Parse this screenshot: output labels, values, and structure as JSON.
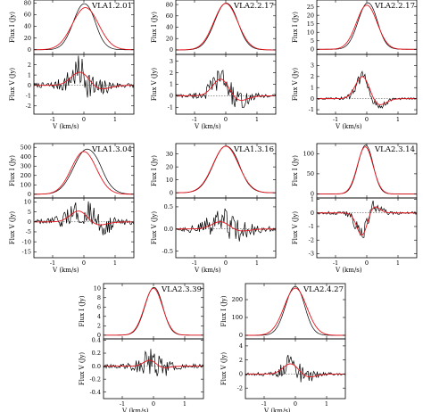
{
  "chart_data": [
    {
      "type": "line",
      "panel_title": "VLA1.2.01",
      "x_ticks": [
        -1,
        0,
        1
      ],
      "xlabel": "V (km/s)",
      "xlim": [
        -1.6,
        1.6
      ],
      "stokes_i": {
        "ylabel": "Flux I (Jy)",
        "ylim": [
          -8,
          85
        ],
        "y_ticks": [
          0,
          20,
          40,
          60,
          80
        ],
        "peak": 78,
        "center": 0.0,
        "width": 0.34,
        "model_peak": 72,
        "model_center": 0.05,
        "model_width": 0.42
      },
      "stokes_v": {
        "ylabel": "Flux V (Jy)",
        "ylim": [
          -2.8,
          3.0
        ],
        "y_ticks": [
          -2,
          -1,
          0,
          1,
          2
        ],
        "model_amp": 1.4,
        "noise": 0.9
      }
    },
    {
      "type": "line",
      "panel_title": "VLA2.2.17",
      "x_ticks": [
        -1,
        0,
        1
      ],
      "xlabel": "V (km/s)",
      "xlim": [
        -1.6,
        1.6
      ],
      "stokes_i": {
        "ylabel": "Flux I (Jy)",
        "ylim": [
          -8,
          88
        ],
        "y_ticks": [
          0,
          20,
          40,
          60,
          80
        ],
        "peak": 82,
        "center": 0.0,
        "width": 0.36,
        "model_peak": 82,
        "model_center": 0.0,
        "model_width": 0.38
      },
      "stokes_v": {
        "ylabel": "Flux V (Jy)",
        "ylim": [
          -1.6,
          3.6
        ],
        "y_ticks": [
          -1,
          0,
          1,
          2,
          3
        ],
        "model_amp": 1.6,
        "noise": 0.6
      }
    },
    {
      "type": "line",
      "panel_title": "VLA2.2.17",
      "x_ticks": [
        -1,
        0,
        1
      ],
      "xlabel": "V (km/s)",
      "xlim": [
        -1.6,
        1.6
      ],
      "stokes_i": {
        "ylabel": "Flux I (Jy)",
        "ylim": [
          -3,
          29
        ],
        "y_ticks": [
          0,
          5,
          10,
          15,
          20,
          25
        ],
        "peak": 27,
        "center": 0.02,
        "width": 0.3,
        "model_peak": 26,
        "model_center": 0.0,
        "model_width": 0.33
      },
      "stokes_v": {
        "ylabel": "Flux V (Jy)",
        "ylim": [
          -1.4,
          4.0
        ],
        "y_ticks": [
          -1,
          0,
          1,
          2,
          3
        ],
        "model_amp": 2.2,
        "noise": 0.3
      }
    },
    {
      "type": "line",
      "panel_title": "VLA1.3.04",
      "x_ticks": [
        -1,
        0,
        1
      ],
      "xlabel": "V (km/s)",
      "xlim": [
        -1.6,
        1.6
      ],
      "stokes_i": {
        "ylabel": "Flux I (Jy)",
        "ylim": [
          -40,
          540
        ],
        "y_ticks": [
          0,
          100,
          200,
          300,
          400,
          500
        ],
        "peak": 480,
        "center": 0.1,
        "width": 0.42,
        "model_peak": 455,
        "model_center": 0.0,
        "model_width": 0.4
      },
      "stokes_v": {
        "ylabel": "Flux V (Jy)",
        "ylim": [
          -18,
          12
        ],
        "y_ticks": [
          -15,
          -10,
          -5,
          0,
          5,
          10
        ],
        "model_amp": 6,
        "noise": 4
      }
    },
    {
      "type": "line",
      "panel_title": "VLA1.3.16",
      "x_ticks": [
        -1,
        0,
        1
      ],
      "xlabel": "V (km/s)",
      "xlim": [
        -1.6,
        1.6
      ],
      "stokes_i": {
        "ylabel": "Flux I (Jy)",
        "ylim": [
          -4,
          38
        ],
        "y_ticks": [
          0,
          10,
          20,
          30
        ],
        "peak": 36,
        "center": 0.0,
        "width": 0.4,
        "model_peak": 36,
        "model_center": 0.0,
        "model_width": 0.41
      },
      "stokes_v": {
        "ylabel": "Flux V (Jy)",
        "ylim": [
          -0.65,
          0.7
        ],
        "y_ticks": [
          -0.5,
          0.0,
          0.5
        ],
        "model_amp": 0.18,
        "noise": 0.18
      }
    },
    {
      "type": "line",
      "panel_title": "VLA2.3.14",
      "x_ticks": [
        -1,
        0,
        1
      ],
      "xlabel": "V (km/s)",
      "xlim": [
        -1.6,
        1.6
      ],
      "stokes_i": {
        "ylabel": "Flux I (Jy)",
        "ylim": [
          -10,
          125
        ],
        "y_ticks": [
          0,
          50,
          100
        ],
        "peak": 118,
        "center": -0.05,
        "width": 0.24,
        "model_peak": 117,
        "model_center": -0.05,
        "model_width": 0.25
      },
      "stokes_v": {
        "ylabel": "Flux V (Jy)",
        "ylim": [
          -3.3,
          1.1
        ],
        "y_ticks": [
          -3,
          -2,
          -1,
          0,
          1
        ],
        "model_amp": -1.8,
        "noise": 0.4
      }
    },
    {
      "type": "line",
      "panel_title": "VLA2.3.39",
      "x_ticks": [
        -1,
        0,
        1
      ],
      "xlabel": "V (km/s)",
      "xlim": [
        -1.6,
        1.6
      ],
      "stokes_i": {
        "ylabel": "Flux I (Jy)",
        "ylim": [
          -0.8,
          11
        ],
        "y_ticks": [
          0,
          2,
          4,
          6,
          8,
          10
        ],
        "peak": 10,
        "center": 0.0,
        "width": 0.28,
        "model_peak": 10,
        "model_center": 0.0,
        "model_width": 0.29
      },
      "stokes_v": {
        "ylabel": "Flux V (Jy)",
        "ylim": [
          -0.5,
          0.42
        ],
        "y_ticks": [
          -0.4,
          -0.2,
          0.0,
          0.2,
          0.4
        ],
        "model_amp": 0.1,
        "noise": 0.12
      }
    },
    {
      "type": "line",
      "panel_title": "VLA2.4.27",
      "x_ticks": [
        -1,
        0,
        1
      ],
      "xlabel": "V (km/s)",
      "xlim": [
        -1.6,
        1.6
      ],
      "stokes_i": {
        "ylabel": "Flux I (Jy)",
        "ylim": [
          -20,
          290
        ],
        "y_ticks": [
          0,
          100,
          200
        ],
        "peak": 270,
        "center": -0.02,
        "width": 0.3,
        "model_peak": 265,
        "model_center": 0.0,
        "model_width": 0.36
      },
      "stokes_v": {
        "ylabel": "Flux V (Jy)",
        "ylim": [
          -3.5,
          5.0
        ],
        "y_ticks": [
          -2,
          0,
          2,
          4
        ],
        "model_amp": 1.6,
        "noise": 0.8
      }
    }
  ]
}
